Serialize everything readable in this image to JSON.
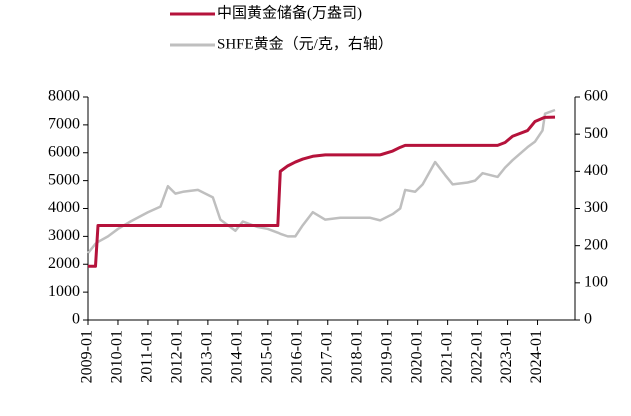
{
  "chart_data": {
    "type": "line",
    "x": [
      "2009-01",
      "2009-04",
      "2009-05",
      "2009-09",
      "2010-01",
      "2010-06",
      "2011-01",
      "2011-06",
      "2011-09",
      "2011-12",
      "2012-03",
      "2012-09",
      "2012-12",
      "2013-03",
      "2013-06",
      "2013-12",
      "2014-03",
      "2014-09",
      "2015-01",
      "2015-05",
      "2015-06",
      "2015-09",
      "2015-12",
      "2016-03",
      "2016-07",
      "2016-12",
      "2017-06",
      "2017-12",
      "2018-06",
      "2018-10",
      "2019-03",
      "2019-06",
      "2019-08",
      "2019-12",
      "2020-03",
      "2020-08",
      "2020-12",
      "2021-03",
      "2021-09",
      "2021-12",
      "2022-03",
      "2022-09",
      "2022-12",
      "2023-03",
      "2023-09",
      "2023-12",
      "2024-03",
      "2024-04",
      "2024-08"
    ],
    "series": [
      {
        "name": "中国黄金储备(万盎司)",
        "color": "#b5123b",
        "axis": "y",
        "values": [
          1929,
          1929,
          3389,
          3389,
          3389,
          3389,
          3389,
          3389,
          3389,
          3389,
          3389,
          3389,
          3389,
          3389,
          3389,
          3389,
          3389,
          3389,
          3389,
          3389,
          5332,
          5530,
          5666,
          5774,
          5874,
          5924,
          5924,
          5924,
          5924,
          5924,
          6062,
          6194,
          6264,
          6264,
          6264,
          6264,
          6264,
          6264,
          6264,
          6264,
          6264,
          6264,
          6367,
          6592,
          6795,
          7122,
          7240,
          7270,
          7280
        ]
      },
      {
        "name": "SHFE黄金（元/克，右轴）",
        "color": "#bfbfbf",
        "axis": "y2",
        "values": [
          180,
          205,
          210,
          225,
          245,
          265,
          290,
          305,
          360,
          340,
          345,
          350,
          340,
          330,
          270,
          240,
          265,
          250,
          245,
          235,
          232,
          225,
          225,
          255,
          290,
          270,
          275,
          275,
          275,
          268,
          285,
          300,
          350,
          345,
          365,
          425,
          390,
          365,
          370,
          375,
          395,
          385,
          410,
          430,
          465,
          480,
          510,
          555,
          565
        ]
      }
    ],
    "xlim": [
      "2009-01",
      "2025-04"
    ],
    "xticks": [
      "2009-01",
      "2010-01",
      "2011-01",
      "2012-01",
      "2013-01",
      "2014-01",
      "2015-01",
      "2016-01",
      "2017-01",
      "2018-01",
      "2019-01",
      "2020-01",
      "2021-01",
      "2022-01",
      "2023-01",
      "2024-01"
    ],
    "ylim": [
      0,
      8000
    ],
    "yticks": [
      0,
      1000,
      2000,
      3000,
      4000,
      5000,
      6000,
      7000,
      8000
    ],
    "y2lim": [
      0,
      600
    ],
    "y2ticks": [
      0,
      100,
      200,
      300,
      400,
      500,
      600
    ]
  }
}
